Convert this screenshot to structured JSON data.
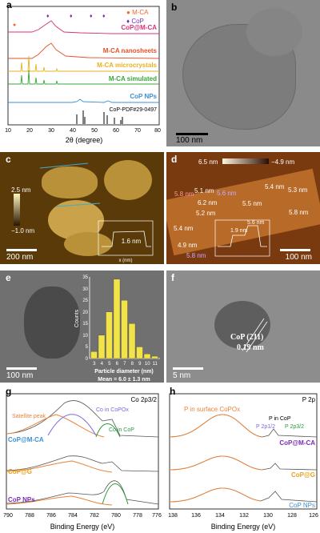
{
  "panels": {
    "a": {
      "label": "a",
      "legend": [
        {
          "symbol": "●",
          "text": "M-CA",
          "color": "#ee6a2a"
        },
        {
          "symbol": "♦",
          "text": "CoP",
          "color": "#7a2bb5"
        }
      ],
      "curves": [
        {
          "name": "CoP@M-CA",
          "color": "#d8307a"
        },
        {
          "name": "M-CA nanosheets",
          "color": "#e0542a"
        },
        {
          "name": "M-CA microcrystals",
          "color": "#e9b21d"
        },
        {
          "name": "M-CA simulated",
          "color": "#3aa63a"
        },
        {
          "name": "CoP NPs",
          "color": "#3c8fd4"
        },
        {
          "name": "CoP-PDF#29-0497",
          "color": "#000000"
        }
      ],
      "xlabel": "2θ (degree)",
      "xticks": [
        "10",
        "20",
        "30",
        "40",
        "50",
        "60",
        "70",
        "80"
      ],
      "chart_data": {
        "type": "line",
        "xlabel": "2θ (degree)",
        "xlim": [
          10,
          80
        ],
        "xticks": [
          10,
          20,
          30,
          40,
          50,
          60,
          70,
          80
        ],
        "series": [
          {
            "name": "CoP@M-CA"
          },
          {
            "name": "M-CA nanosheets"
          },
          {
            "name": "M-CA microcrystals"
          },
          {
            "name": "M-CA simulated"
          },
          {
            "name": "CoP NPs"
          },
          {
            "name": "CoP-PDF#29-0497",
            "peaks": [
              31.6,
              35.3,
              36.3,
              46.2,
              48.1,
              52.3,
              56.0,
              56.8
            ]
          }
        ]
      }
    },
    "b": {
      "label": "b",
      "scalebar": "100 nm"
    },
    "c": {
      "label": "c",
      "cbar_top": "2.5 nm",
      "cbar_bottom": "−1.0 nm",
      "scalebar": "200 nm",
      "inset": {
        "value": "1.6 nm",
        "ylabel": "h (nm)",
        "xlabel": "x (nm)",
        "yticks": [
          "0",
          "1",
          "2"
        ],
        "xticks": [
          "0",
          "200",
          "400"
        ]
      }
    },
    "d": {
      "label": "d",
      "cbar_left": "6.5 nm",
      "cbar_right": "−4.9 nm",
      "scalebar": "100 nm",
      "heights": [
        "5.8 nm",
        "5.1 nm",
        "5.6 nm",
        "5.4 nm",
        "5.3 nm",
        "6.2 nm",
        "5.5 nm",
        "5.2 nm",
        "5.8 nm",
        "5.4 nm",
        "4.9 nm",
        "5.8 nm"
      ],
      "inset": {
        "v1": "1.9 nm",
        "v2": "5.6 nm",
        "ylabel": "h (nm)",
        "xlabel": "x (nm)",
        "xticks": [
          "0",
          "50",
          "100"
        ],
        "yticks": [
          "0",
          "3",
          "6"
        ]
      }
    },
    "e": {
      "label": "e",
      "scalebar": "100 nm",
      "hist": {
        "xlabel": "Particle diameter (nm)",
        "ylabel": "Counts",
        "mean": "Mean = 6.0 ± 1.3 nm",
        "yticks": [
          "0",
          "5",
          "10",
          "15",
          "20",
          "25",
          "30",
          "35"
        ],
        "xticks": [
          "3",
          "4",
          "5",
          "6",
          "7",
          "8",
          "9",
          "10",
          "11"
        ]
      },
      "chart_data": {
        "type": "bar",
        "categories": [
          "3",
          "4",
          "5",
          "6",
          "7",
          "8",
          "9",
          "10",
          "11"
        ],
        "values": [
          3,
          10,
          20,
          34,
          25,
          15,
          5,
          2,
          1
        ],
        "xlabel": "Particle diameter (nm)",
        "ylabel": "Counts",
        "ylim": [
          0,
          35
        ]
      }
    },
    "f": {
      "label": "f",
      "annotation1": "CoP (211)",
      "annotation2": "0.19 nm",
      "scalebar": "5 nm"
    },
    "g": {
      "label": "g",
      "title": "Co 2p3/2",
      "xlabel": "Binding Energy (eV)",
      "xticks": [
        "790",
        "788",
        "786",
        "784",
        "782",
        "780",
        "778",
        "776"
      ],
      "annotations": {
        "satellite": "Satellite peak",
        "cocopox": "Co in CoPOx",
        "coincop": "Co in CoP"
      },
      "samples": [
        "CoP@M-CA",
        "CoP@G",
        "CoP NPs"
      ]
    },
    "h": {
      "label": "h",
      "title": "P 2p",
      "xlabel": "Binding Energy (eV)",
      "xticks": [
        "138",
        "136",
        "134",
        "132",
        "130",
        "128",
        "126"
      ],
      "annotations": {
        "psurf": "P in surface CoPOx",
        "pincop": "P in CoP",
        "p12": "P 2p1/2",
        "p32": "P 2p3/2"
      },
      "samples": [
        "CoP@M-CA",
        "CoP@G",
        "CoP NPs"
      ]
    }
  }
}
